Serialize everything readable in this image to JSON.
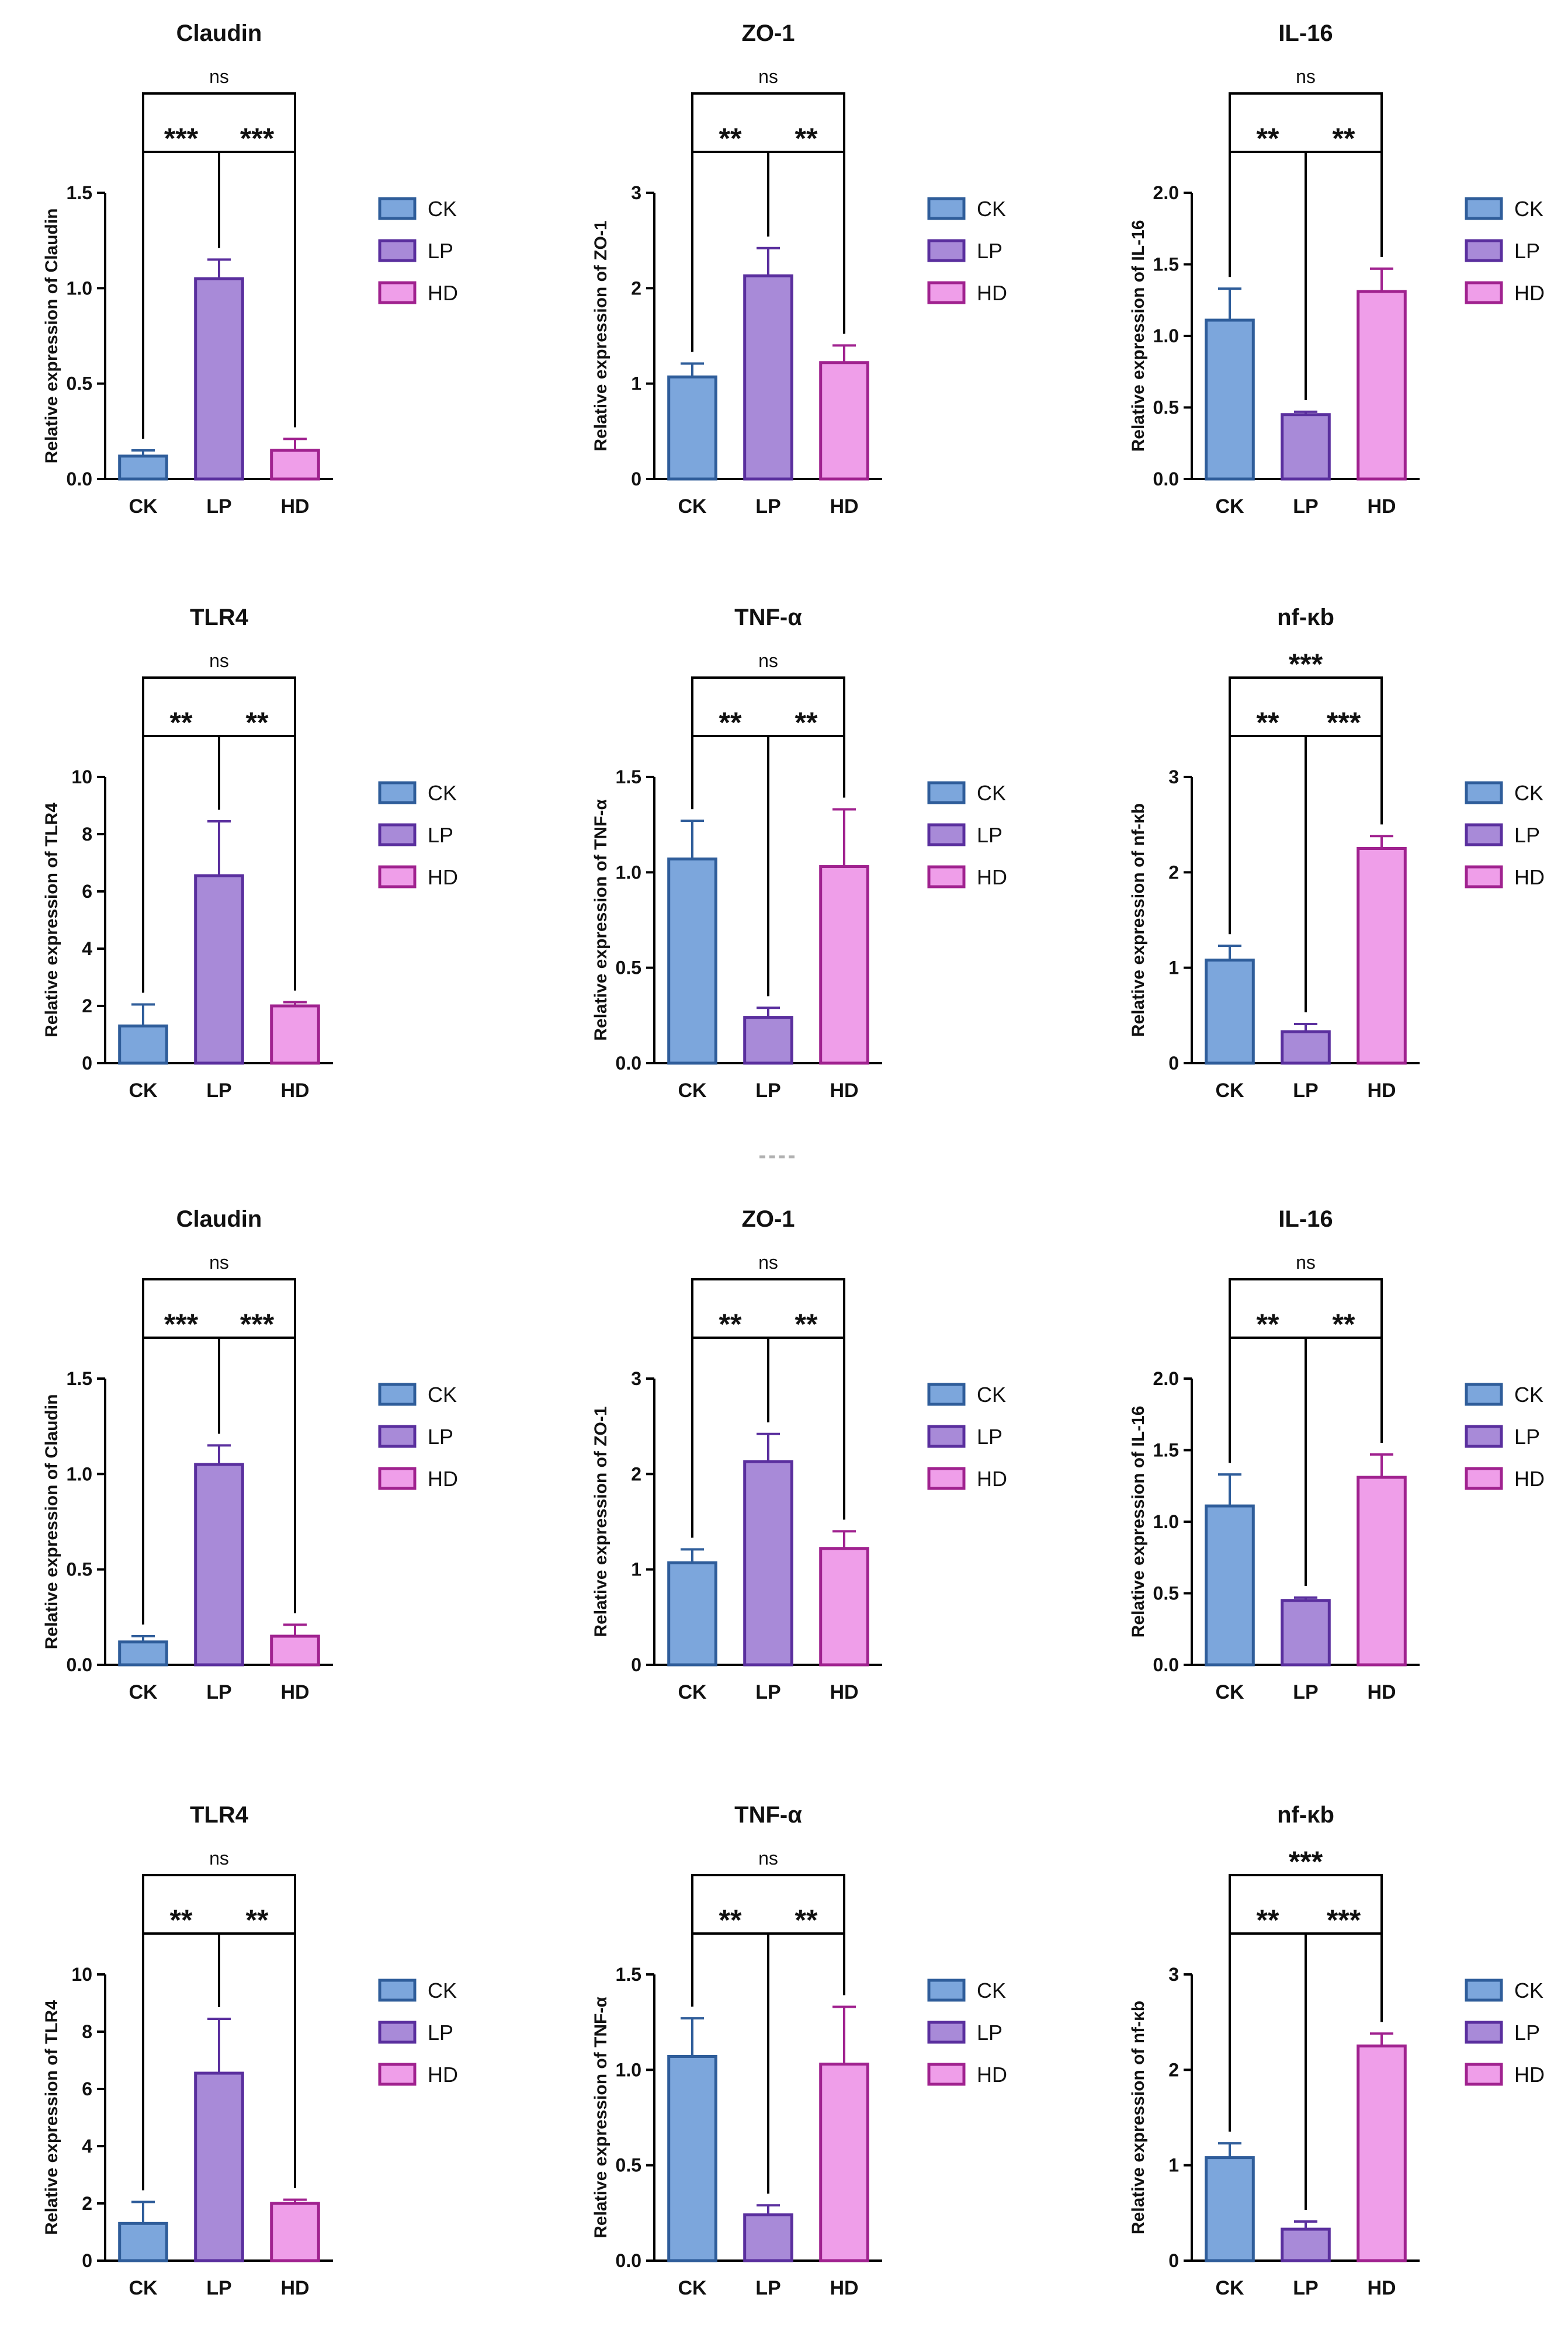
{
  "figure": {
    "separator_text": "- -"
  },
  "legend": {
    "entries": [
      "CK",
      "LP",
      "HD"
    ],
    "colors": {
      "CK": {
        "fill": "#7ca6dc",
        "stroke": "#2f5d9a"
      },
      "LP": {
        "fill": "#a88ad8",
        "stroke": "#5a2f9e"
      },
      "HD": {
        "fill": "#ef9ee9",
        "stroke": "#a0228f"
      }
    }
  },
  "chart_data": [
    {
      "type": "bar",
      "title": "Claudin",
      "ylabel": "Relative expression of  Claudin",
      "categories": [
        "CK",
        "LP",
        "HD"
      ],
      "values": [
        0.12,
        1.05,
        0.15
      ],
      "errors": [
        0.03,
        0.1,
        0.06
      ],
      "ylim": [
        0,
        1.5
      ],
      "yticks": [
        0.0,
        0.5,
        1.0,
        1.5
      ],
      "ytick_labels": [
        "0.0",
        "0.5",
        "1.0",
        "1.5"
      ],
      "comparisons": [
        {
          "from": 0,
          "to": 1,
          "label": "***"
        },
        {
          "from": 1,
          "to": 2,
          "label": "***"
        },
        {
          "from": 0,
          "to": 2,
          "label": "ns"
        }
      ]
    },
    {
      "type": "bar",
      "title": "ZO-1",
      "ylabel": "Relative expression of  ZO-1",
      "categories": [
        "CK",
        "LP",
        "HD"
      ],
      "values": [
        1.07,
        2.13,
        1.22
      ],
      "errors": [
        0.14,
        0.29,
        0.18
      ],
      "ylim": [
        0,
        3
      ],
      "yticks": [
        0,
        1,
        2,
        3
      ],
      "ytick_labels": [
        "0",
        "1",
        "2",
        "3"
      ],
      "comparisons": [
        {
          "from": 0,
          "to": 1,
          "label": "**"
        },
        {
          "from": 1,
          "to": 2,
          "label": "**"
        },
        {
          "from": 0,
          "to": 2,
          "label": "ns"
        }
      ]
    },
    {
      "type": "bar",
      "title": "IL-16",
      "ylabel": "Relative expression of  IL-16",
      "categories": [
        "CK",
        "LP",
        "HD"
      ],
      "values": [
        1.11,
        0.45,
        1.31
      ],
      "errors": [
        0.22,
        0.02,
        0.16
      ],
      "ylim": [
        0,
        2.0
      ],
      "yticks": [
        0.0,
        0.5,
        1.0,
        1.5,
        2.0
      ],
      "ytick_labels": [
        "0.0",
        "0.5",
        "1.0",
        "1.5",
        "2.0"
      ],
      "comparisons": [
        {
          "from": 0,
          "to": 1,
          "label": "**"
        },
        {
          "from": 1,
          "to": 2,
          "label": "**"
        },
        {
          "from": 0,
          "to": 2,
          "label": "ns"
        }
      ]
    },
    {
      "type": "bar",
      "title": "TLR4",
      "ylabel": "Relative expression of  TLR4",
      "categories": [
        "CK",
        "LP",
        "HD"
      ],
      "values": [
        1.3,
        6.55,
        2.0
      ],
      "errors": [
        0.75,
        1.9,
        0.13
      ],
      "ylim": [
        0,
        10
      ],
      "yticks": [
        0,
        2,
        4,
        6,
        8,
        10
      ],
      "ytick_labels": [
        "0",
        "2",
        "4",
        "6",
        "8",
        "10"
      ],
      "comparisons": [
        {
          "from": 0,
          "to": 1,
          "label": "**"
        },
        {
          "from": 1,
          "to": 2,
          "label": "**"
        },
        {
          "from": 0,
          "to": 2,
          "label": "ns"
        }
      ]
    },
    {
      "type": "bar",
      "title": "TNF-α",
      "ylabel": "Relative expression of  TNF-α",
      "categories": [
        "CK",
        "LP",
        "HD"
      ],
      "values": [
        1.07,
        0.24,
        1.03
      ],
      "errors": [
        0.2,
        0.05,
        0.3
      ],
      "ylim": [
        0,
        1.5
      ],
      "yticks": [
        0.0,
        0.5,
        1.0,
        1.5
      ],
      "ytick_labels": [
        "0.0",
        "0.5",
        "1.0",
        "1.5"
      ],
      "comparisons": [
        {
          "from": 0,
          "to": 1,
          "label": "**"
        },
        {
          "from": 1,
          "to": 2,
          "label": "**"
        },
        {
          "from": 0,
          "to": 2,
          "label": "ns"
        }
      ]
    },
    {
      "type": "bar",
      "title": "nf-κb",
      "ylabel": "Relative expression of   nf-κb",
      "categories": [
        "CK",
        "LP",
        "HD"
      ],
      "values": [
        1.08,
        0.33,
        2.25
      ],
      "errors": [
        0.15,
        0.08,
        0.13
      ],
      "ylim": [
        0,
        3
      ],
      "yticks": [
        0,
        1,
        2,
        3
      ],
      "ytick_labels": [
        "0",
        "1",
        "2",
        "3"
      ],
      "comparisons": [
        {
          "from": 0,
          "to": 1,
          "label": "**"
        },
        {
          "from": 1,
          "to": 2,
          "label": "***"
        },
        {
          "from": 0,
          "to": 2,
          "label": "***"
        }
      ]
    },
    {
      "type": "bar",
      "title": "Claudin",
      "ylabel": "Relative expression of  Claudin",
      "categories": [
        "CK",
        "LP",
        "HD"
      ],
      "values": [
        0.12,
        1.05,
        0.15
      ],
      "errors": [
        0.03,
        0.1,
        0.06
      ],
      "ylim": [
        0,
        1.5
      ],
      "yticks": [
        0.0,
        0.5,
        1.0,
        1.5
      ],
      "ytick_labels": [
        "0.0",
        "0.5",
        "1.0",
        "1.5"
      ],
      "comparisons": [
        {
          "from": 0,
          "to": 1,
          "label": "***"
        },
        {
          "from": 1,
          "to": 2,
          "label": "***"
        },
        {
          "from": 0,
          "to": 2,
          "label": "ns"
        }
      ]
    },
    {
      "type": "bar",
      "title": "ZO-1",
      "ylabel": "Relative expression of  ZO-1",
      "categories": [
        "CK",
        "LP",
        "HD"
      ],
      "values": [
        1.07,
        2.13,
        1.22
      ],
      "errors": [
        0.14,
        0.29,
        0.18
      ],
      "ylim": [
        0,
        3
      ],
      "yticks": [
        0,
        1,
        2,
        3
      ],
      "ytick_labels": [
        "0",
        "1",
        "2",
        "3"
      ],
      "comparisons": [
        {
          "from": 0,
          "to": 1,
          "label": "**"
        },
        {
          "from": 1,
          "to": 2,
          "label": "**"
        },
        {
          "from": 0,
          "to": 2,
          "label": "ns"
        }
      ]
    },
    {
      "type": "bar",
      "title": "IL-16",
      "ylabel": "Relative expression of  IL-16",
      "categories": [
        "CK",
        "LP",
        "HD"
      ],
      "values": [
        1.11,
        0.45,
        1.31
      ],
      "errors": [
        0.22,
        0.02,
        0.16
      ],
      "ylim": [
        0,
        2.0
      ],
      "yticks": [
        0.0,
        0.5,
        1.0,
        1.5,
        2.0
      ],
      "ytick_labels": [
        "0.0",
        "0.5",
        "1.0",
        "1.5",
        "2.0"
      ],
      "comparisons": [
        {
          "from": 0,
          "to": 1,
          "label": "**"
        },
        {
          "from": 1,
          "to": 2,
          "label": "**"
        },
        {
          "from": 0,
          "to": 2,
          "label": "ns"
        }
      ]
    },
    {
      "type": "bar",
      "title": "TLR4",
      "ylabel": "Relative expression of  TLR4",
      "categories": [
        "CK",
        "LP",
        "HD"
      ],
      "values": [
        1.3,
        6.55,
        2.0
      ],
      "errors": [
        0.75,
        1.9,
        0.13
      ],
      "ylim": [
        0,
        10
      ],
      "yticks": [
        0,
        2,
        4,
        6,
        8,
        10
      ],
      "ytick_labels": [
        "0",
        "2",
        "4",
        "6",
        "8",
        "10"
      ],
      "comparisons": [
        {
          "from": 0,
          "to": 1,
          "label": "**"
        },
        {
          "from": 1,
          "to": 2,
          "label": "**"
        },
        {
          "from": 0,
          "to": 2,
          "label": "ns"
        }
      ]
    },
    {
      "type": "bar",
      "title": "TNF-α",
      "ylabel": "Relative expression of  TNF-α",
      "categories": [
        "CK",
        "LP",
        "HD"
      ],
      "values": [
        1.07,
        0.24,
        1.03
      ],
      "errors": [
        0.2,
        0.05,
        0.3
      ],
      "ylim": [
        0,
        1.5
      ],
      "yticks": [
        0.0,
        0.5,
        1.0,
        1.5
      ],
      "ytick_labels": [
        "0.0",
        "0.5",
        "1.0",
        "1.5"
      ],
      "comparisons": [
        {
          "from": 0,
          "to": 1,
          "label": "**"
        },
        {
          "from": 1,
          "to": 2,
          "label": "**"
        },
        {
          "from": 0,
          "to": 2,
          "label": "ns"
        }
      ]
    },
    {
      "type": "bar",
      "title": "nf-κb",
      "ylabel": "Relative expression of   nf-κb",
      "categories": [
        "CK",
        "LP",
        "HD"
      ],
      "values": [
        1.08,
        0.33,
        2.25
      ],
      "errors": [
        0.15,
        0.08,
        0.13
      ],
      "ylim": [
        0,
        3
      ],
      "yticks": [
        0,
        1,
        2,
        3
      ],
      "ytick_labels": [
        "0",
        "1",
        "2",
        "3"
      ],
      "comparisons": [
        {
          "from": 0,
          "to": 1,
          "label": "**"
        },
        {
          "from": 1,
          "to": 2,
          "label": "***"
        },
        {
          "from": 0,
          "to": 2,
          "label": "***"
        }
      ]
    }
  ]
}
